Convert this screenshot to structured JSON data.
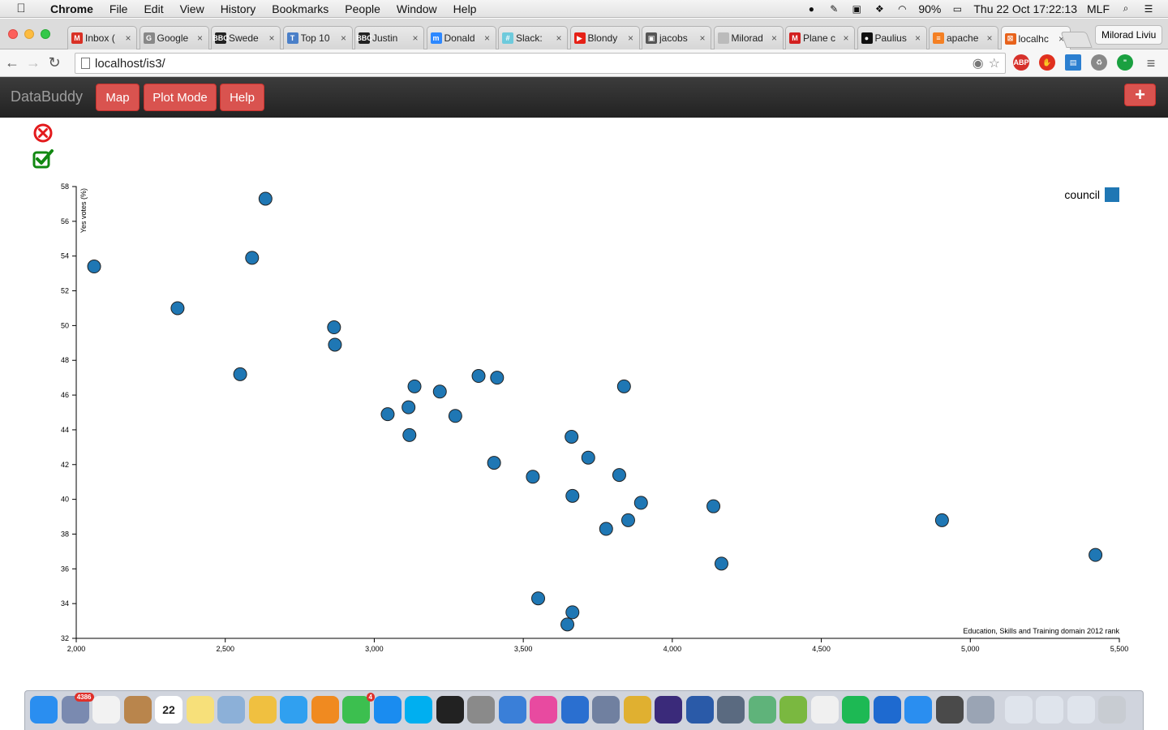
{
  "menubar": {
    "app": "Chrome",
    "items": [
      "File",
      "Edit",
      "View",
      "History",
      "Bookmarks",
      "People",
      "Window",
      "Help"
    ],
    "battery": "90%",
    "datetime": "Thu 22 Oct  17:22:13",
    "input_source": "MLF"
  },
  "tabs": [
    {
      "label": "Inbox (",
      "icon": "gmail-icon",
      "color": "#d93025",
      "glyph": "M"
    },
    {
      "label": "Google",
      "icon": "google-doc-icon",
      "color": "#888888",
      "glyph": "G"
    },
    {
      "label": "Swede",
      "icon": "bbc-icon",
      "color": "#222222",
      "glyph": "BBC"
    },
    {
      "label": "Top 10",
      "icon": "site-icon",
      "color": "#4a7fc8",
      "glyph": "T"
    },
    {
      "label": "Justin",
      "icon": "bbc-icon",
      "color": "#222222",
      "glyph": "BBC"
    },
    {
      "label": "Donald",
      "icon": "messenger-icon",
      "color": "#2d88ff",
      "glyph": "m"
    },
    {
      "label": "Slack:",
      "icon": "slack-icon",
      "color": "#6ecadc",
      "glyph": "#"
    },
    {
      "label": "Blondy",
      "icon": "youtube-icon",
      "color": "#e62117",
      "glyph": "▶"
    },
    {
      "label": "jacobs",
      "icon": "image-icon",
      "color": "#555555",
      "glyph": "▣"
    },
    {
      "label": "Milorad",
      "icon": "page-icon",
      "color": "#bbbbbb",
      "glyph": ""
    },
    {
      "label": "Plane c",
      "icon": "m-icon",
      "color": "#d32020",
      "glyph": "M"
    },
    {
      "label": "Paulius",
      "icon": "github-icon",
      "color": "#111111",
      "glyph": "●"
    },
    {
      "label": "apache",
      "icon": "stackoverflow-icon",
      "color": "#f48024",
      "glyph": "≡"
    },
    {
      "label": "localhc",
      "icon": "localhost-icon",
      "color": "#e8631c",
      "glyph": "⊠"
    }
  ],
  "profile_name": "Milorad Liviu",
  "address": "localhost/is3/",
  "app": {
    "brand": "DataBuddy",
    "buttons": [
      "Map",
      "Plot Mode",
      "Help"
    ],
    "plus": "+"
  },
  "colors": {
    "accent": "#d9534f",
    "point": "#1f77b4",
    "close": "#e31a1c",
    "check": "#118811"
  },
  "chart_data": {
    "type": "scatter",
    "xlabel": "Education, Skills and Training domain 2012 rank",
    "ylabel": "Yes votes (%)",
    "xlim": [
      2000,
      5500
    ],
    "ylim": [
      32,
      58
    ],
    "xticks": [
      2000,
      2500,
      3000,
      3500,
      4000,
      4500,
      5000,
      5500
    ],
    "yticks": [
      32,
      34,
      36,
      38,
      40,
      42,
      44,
      46,
      48,
      50,
      52,
      54,
      56,
      58
    ],
    "legend": "top-right",
    "series": [
      {
        "name": "council",
        "points": [
          [
            2060,
            53.4
          ],
          [
            2340,
            51.0
          ],
          [
            2550,
            47.2
          ],
          [
            2590,
            53.9
          ],
          [
            2635,
            57.3
          ],
          [
            2865,
            49.9
          ],
          [
            2868,
            48.9
          ],
          [
            3045,
            44.9
          ],
          [
            3115,
            45.3
          ],
          [
            3118,
            43.7
          ],
          [
            3135,
            46.5
          ],
          [
            3220,
            46.2
          ],
          [
            3272,
            44.8
          ],
          [
            3350,
            47.1
          ],
          [
            3402,
            42.1
          ],
          [
            3412,
            47.0
          ],
          [
            3532,
            41.3
          ],
          [
            3550,
            34.3
          ],
          [
            3648,
            32.8
          ],
          [
            3662,
            43.6
          ],
          [
            3665,
            40.2
          ],
          [
            3665,
            33.5
          ],
          [
            3718,
            42.4
          ],
          [
            3778,
            38.3
          ],
          [
            3822,
            41.4
          ],
          [
            3838,
            46.5
          ],
          [
            3852,
            38.8
          ],
          [
            3895,
            39.8
          ],
          [
            4138,
            39.6
          ],
          [
            4165,
            36.3
          ],
          [
            4905,
            38.8
          ],
          [
            5420,
            36.8
          ]
        ]
      }
    ]
  },
  "dock": [
    {
      "name": "finder-icon",
      "color": "#2a8ef0"
    },
    {
      "name": "photo-slideshow-icon",
      "color": "#7a8ab0",
      "badge": "4386"
    },
    {
      "name": "reminders-icon",
      "color": "#f2f2f2"
    },
    {
      "name": "contacts-icon",
      "color": "#b9854c"
    },
    {
      "name": "calendar-icon",
      "color": "#ffffff",
      "label": "22"
    },
    {
      "name": "notes-icon",
      "color": "#f7e07a"
    },
    {
      "name": "preview-icon",
      "color": "#8cb0d8"
    },
    {
      "name": "photos-icon",
      "color": "#f0c040"
    },
    {
      "name": "messages-icon",
      "color": "#30a0f0"
    },
    {
      "name": "ibooks-icon",
      "color": "#f08a20"
    },
    {
      "name": "facetime-icon",
      "color": "#3cbf4f",
      "badge": "4"
    },
    {
      "name": "app-store-icon",
      "color": "#1a8cf0"
    },
    {
      "name": "skype-icon",
      "color": "#00aff0"
    },
    {
      "name": "terminal-icon",
      "color": "#222222"
    },
    {
      "name": "system-preferences-icon",
      "color": "#8a8a8a"
    },
    {
      "name": "xcode-icon",
      "color": "#3a7fd8"
    },
    {
      "name": "itunes-icon",
      "color": "#e84aa0"
    },
    {
      "name": "1password-icon",
      "color": "#2a6fd0"
    },
    {
      "name": "image-capture-icon",
      "color": "#7080a0"
    },
    {
      "name": "chrome-icon",
      "color": "#e0b030"
    },
    {
      "name": "eclipse-icon",
      "color": "#3a2a7a"
    },
    {
      "name": "word-icon",
      "color": "#2a5aa8"
    },
    {
      "name": "x11-icon",
      "color": "#5a6a80"
    },
    {
      "name": "atom-icon",
      "color": "#5fb37a"
    },
    {
      "name": "android-studio-icon",
      "color": "#7ab840"
    },
    {
      "name": "launchpad-icon",
      "color": "#f0f0f0"
    },
    {
      "name": "spotify-icon",
      "color": "#1db954"
    },
    {
      "name": "teamviewer-icon",
      "color": "#1e6ad0"
    },
    {
      "name": "safari-icon",
      "color": "#2a8ef0"
    },
    {
      "name": "sublime-text-icon",
      "color": "#4a4a4a"
    },
    {
      "name": "utilities-icon",
      "color": "#9aa4b4"
    },
    {
      "name": "screenshot-folder-icon",
      "color": "#dfe4ec"
    },
    {
      "name": "documents-folder-icon",
      "color": "#dfe4ec"
    },
    {
      "name": "downloads-folder-icon",
      "color": "#dfe4ec"
    },
    {
      "name": "trash-icon",
      "color": "#c8ccd2"
    }
  ]
}
